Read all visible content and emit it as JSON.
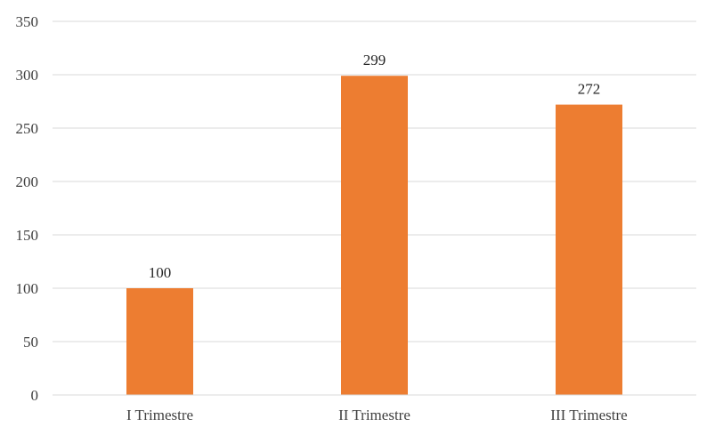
{
  "chart_data": {
    "type": "bar",
    "title": "",
    "xlabel": "",
    "ylabel": "",
    "categories": [
      "I Trimestre",
      "II Trimestre",
      "III Trimestre"
    ],
    "values": [
      100,
      299,
      272
    ],
    "ylim": [
      0,
      350
    ],
    "yticks": [
      0,
      50,
      100,
      150,
      200,
      250,
      300,
      350
    ],
    "grid": true,
    "legend": "none",
    "data_labels": true,
    "bar_color": "#ed7d31",
    "grid_color": "#d9d9d9",
    "text_color": "#404040"
  }
}
